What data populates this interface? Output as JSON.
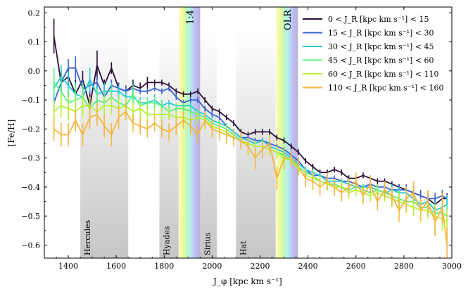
{
  "chart_data": {
    "type": "line",
    "xlabel": "J_φ [kpc km s⁻¹]",
    "ylabel": "[Fe/H]",
    "xlim": [
      1300,
      3000
    ],
    "ylim": [
      -0.645,
      0.22
    ],
    "xticks": [
      1400,
      1600,
      1800,
      2000,
      2200,
      2400,
      2600,
      2800,
      3000
    ],
    "yticks": [
      0.2,
      0.1,
      0.0,
      -0.1,
      -0.2,
      -0.3,
      -0.4,
      -0.5,
      -0.6
    ],
    "xtick_labels": [
      "1400",
      "1600",
      "1800",
      "2000",
      "2200",
      "2400",
      "2600",
      "2800",
      "3000"
    ],
    "ytick_labels": [
      "0.2",
      "0.1",
      "0.0",
      "−0.1",
      "−0.2",
      "−0.3",
      "−0.4",
      "−0.5",
      "−0.6"
    ],
    "grey_bands": [
      {
        "name": "Hercules",
        "x0": 1450,
        "x1": 1650
      },
      {
        "name": "Hyades",
        "x0": 1780,
        "x1": 1860
      },
      {
        "name": "Sirius",
        "x0": 1950,
        "x1": 2020
      },
      {
        "name": "Hat",
        "x0": 2100,
        "x1": 2265
      }
    ],
    "resonances": [
      {
        "label": "1:4",
        "x0": 1862,
        "x1": 1950
      },
      {
        "label": "OLR",
        "x0": 2268,
        "x1": 2358
      }
    ],
    "x": [
      1340,
      1370,
      1400,
      1430,
      1460,
      1490,
      1520,
      1550,
      1580,
      1610,
      1640,
      1670,
      1700,
      1730,
      1760,
      1790,
      1820,
      1850,
      1880,
      1910,
      1940,
      1970,
      2000,
      2030,
      2060,
      2090,
      2120,
      2150,
      2180,
      2210,
      2240,
      2270,
      2300,
      2330,
      2360,
      2390,
      2420,
      2450,
      2480,
      2510,
      2540,
      2570,
      2600,
      2630,
      2660,
      2690,
      2720,
      2750,
      2780,
      2810,
      2840,
      2870,
      2900,
      2930,
      2960,
      2980
    ],
    "series": [
      {
        "name": "0 < J_R [kpc km s⁻¹] < 15",
        "color": "#2b0f38",
        "values": [
          0.12,
          -0.04,
          -0.02,
          -0.08,
          -0.03,
          -0.12,
          0.02,
          -0.05,
          0.01,
          -0.06,
          -0.07,
          -0.05,
          -0.06,
          -0.04,
          -0.04,
          -0.04,
          -0.05,
          -0.07,
          -0.08,
          -0.08,
          -0.07,
          -0.1,
          -0.13,
          -0.14,
          -0.16,
          -0.18,
          -0.21,
          -0.22,
          -0.21,
          -0.21,
          -0.21,
          -0.23,
          -0.24,
          -0.26,
          -0.28,
          -0.31,
          -0.33,
          -0.35,
          -0.35,
          -0.34,
          -0.35,
          -0.37,
          -0.37,
          -0.36,
          -0.37,
          -0.38,
          -0.38,
          -0.39,
          -0.4,
          -0.41,
          -0.42,
          -0.43,
          -0.44,
          -0.46,
          -0.44,
          -0.44
        ],
        "errors": [
          0.06,
          0.04,
          0.03,
          0.05,
          0.03,
          0.04,
          0.05,
          0.02,
          0.02,
          0.02,
          0.02,
          0.02,
          0.02,
          0.02,
          0.01,
          0.01,
          0.01,
          0.01,
          0.01,
          0.01,
          0.01,
          0.01,
          0.01,
          0.01,
          0.01,
          0.01,
          0.01,
          0.01,
          0.01,
          0.01,
          0.01,
          0.01,
          0.01,
          0.01,
          0.01,
          0.01,
          0.01,
          0.01,
          0.01,
          0.01,
          0.01,
          0.01,
          0.01,
          0.01,
          0.01,
          0.01,
          0.01,
          0.01,
          0.01,
          0.01,
          0.01,
          0.01,
          0.01,
          0.02,
          0.02,
          0.02
        ]
      },
      {
        "name": "15 < J_R [kpc km s⁻¹] < 30",
        "color": "#3a62d6",
        "values": [
          -0.11,
          -0.04,
          0.01,
          0.01,
          -0.06,
          -0.05,
          -0.04,
          -0.09,
          -0.05,
          -0.06,
          -0.07,
          -0.06,
          -0.07,
          -0.07,
          -0.06,
          -0.07,
          -0.06,
          -0.09,
          -0.11,
          -0.1,
          -0.1,
          -0.13,
          -0.15,
          -0.16,
          -0.19,
          -0.21,
          -0.23,
          -0.23,
          -0.24,
          -0.24,
          -0.25,
          -0.26,
          -0.27,
          -0.29,
          -0.31,
          -0.34,
          -0.36,
          -0.36,
          -0.37,
          -0.37,
          -0.38,
          -0.38,
          -0.39,
          -0.4,
          -0.39,
          -0.4,
          -0.4,
          -0.41,
          -0.41,
          -0.41,
          -0.42,
          -0.43,
          -0.44,
          -0.44,
          -0.43,
          -0.44
        ],
        "errors": [
          0.03,
          0.04,
          0.03,
          0.04,
          0.03,
          0.03,
          0.02,
          0.02,
          0.02,
          0.02,
          0.02,
          0.02,
          0.01,
          0.01,
          0.01,
          0.01,
          0.01,
          0.01,
          0.01,
          0.01,
          0.01,
          0.01,
          0.01,
          0.01,
          0.01,
          0.01,
          0.01,
          0.01,
          0.01,
          0.01,
          0.01,
          0.01,
          0.01,
          0.01,
          0.01,
          0.01,
          0.01,
          0.01,
          0.01,
          0.01,
          0.01,
          0.01,
          0.01,
          0.01,
          0.01,
          0.01,
          0.01,
          0.02,
          0.02,
          0.02,
          0.02,
          0.02,
          0.02,
          0.02,
          0.02,
          0.02
        ]
      },
      {
        "name": "30 < J_R [kpc km s⁻¹] < 45",
        "color": "#22cbd8",
        "values": [
          -0.06,
          -0.02,
          -0.05,
          -0.08,
          -0.09,
          -0.03,
          -0.08,
          -0.07,
          -0.07,
          -0.07,
          -0.09,
          -0.09,
          -0.11,
          -0.11,
          -0.1,
          -0.12,
          -0.11,
          -0.12,
          -0.12,
          -0.12,
          -0.14,
          -0.15,
          -0.17,
          -0.18,
          -0.19,
          -0.21,
          -0.23,
          -0.24,
          -0.25,
          -0.24,
          -0.26,
          -0.27,
          -0.28,
          -0.3,
          -0.32,
          -0.34,
          -0.35,
          -0.36,
          -0.38,
          -0.38,
          -0.38,
          -0.39,
          -0.4,
          -0.4,
          -0.4,
          -0.41,
          -0.42,
          -0.41,
          -0.42,
          -0.42,
          -0.44,
          -0.46,
          -0.45,
          -0.48,
          -0.47,
          -0.46
        ],
        "errors": [
          0.04,
          0.04,
          0.05,
          0.04,
          0.04,
          0.04,
          0.03,
          0.03,
          0.03,
          0.02,
          0.02,
          0.02,
          0.02,
          0.02,
          0.02,
          0.02,
          0.01,
          0.01,
          0.01,
          0.01,
          0.01,
          0.01,
          0.01,
          0.01,
          0.01,
          0.01,
          0.01,
          0.01,
          0.01,
          0.01,
          0.01,
          0.01,
          0.01,
          0.01,
          0.01,
          0.01,
          0.01,
          0.01,
          0.01,
          0.01,
          0.01,
          0.01,
          0.01,
          0.01,
          0.01,
          0.01,
          0.02,
          0.02,
          0.02,
          0.02,
          0.02,
          0.02,
          0.02,
          0.03,
          0.03,
          0.03
        ]
      },
      {
        "name": "45 < J_R [kpc km s⁻¹] < 60",
        "color": "#5cf27a",
        "values": [
          -0.04,
          -0.07,
          -0.11,
          -0.1,
          -0.09,
          -0.13,
          -0.1,
          -0.11,
          -0.09,
          -0.11,
          -0.12,
          -0.08,
          -0.12,
          -0.11,
          -0.11,
          -0.12,
          -0.14,
          -0.13,
          -0.13,
          -0.14,
          -0.15,
          -0.16,
          -0.18,
          -0.19,
          -0.2,
          -0.22,
          -0.24,
          -0.25,
          -0.26,
          -0.26,
          -0.27,
          -0.28,
          -0.29,
          -0.31,
          -0.33,
          -0.35,
          -0.36,
          -0.38,
          -0.39,
          -0.39,
          -0.4,
          -0.41,
          -0.4,
          -0.41,
          -0.42,
          -0.41,
          -0.42,
          -0.43,
          -0.44,
          -0.45,
          -0.45,
          -0.47,
          -0.47,
          -0.49,
          -0.49,
          -0.5
        ],
        "errors": [
          0.05,
          0.05,
          0.05,
          0.05,
          0.05,
          0.04,
          0.04,
          0.04,
          0.03,
          0.03,
          0.03,
          0.03,
          0.02,
          0.02,
          0.02,
          0.02,
          0.02,
          0.02,
          0.02,
          0.02,
          0.02,
          0.02,
          0.02,
          0.02,
          0.02,
          0.02,
          0.02,
          0.02,
          0.02,
          0.02,
          0.02,
          0.02,
          0.02,
          0.02,
          0.02,
          0.02,
          0.02,
          0.02,
          0.02,
          0.02,
          0.02,
          0.02,
          0.02,
          0.02,
          0.02,
          0.02,
          0.02,
          0.02,
          0.03,
          0.03,
          0.03,
          0.03,
          0.03,
          0.03,
          0.04,
          0.04
        ]
      },
      {
        "name": "60 < J_R [kpc km s⁻¹] < 110",
        "color": "#b6f233",
        "values": [
          -0.14,
          -0.12,
          -0.13,
          -0.14,
          -0.12,
          -0.12,
          -0.14,
          -0.12,
          -0.12,
          -0.13,
          -0.12,
          -0.14,
          -0.13,
          -0.15,
          -0.15,
          -0.15,
          -0.15,
          -0.16,
          -0.16,
          -0.17,
          -0.16,
          -0.17,
          -0.19,
          -0.2,
          -0.21,
          -0.23,
          -0.24,
          -0.25,
          -0.26,
          -0.26,
          -0.27,
          -0.28,
          -0.3,
          -0.31,
          -0.34,
          -0.36,
          -0.37,
          -0.38,
          -0.39,
          -0.4,
          -0.4,
          -0.42,
          -0.41,
          -0.42,
          -0.43,
          -0.42,
          -0.43,
          -0.44,
          -0.45,
          -0.46,
          -0.47,
          -0.48,
          -0.48,
          -0.5,
          -0.51,
          -0.52
        ],
        "errors": [
          0.04,
          0.04,
          0.04,
          0.04,
          0.04,
          0.03,
          0.03,
          0.03,
          0.03,
          0.03,
          0.03,
          0.03,
          0.03,
          0.03,
          0.02,
          0.02,
          0.02,
          0.02,
          0.02,
          0.02,
          0.02,
          0.02,
          0.02,
          0.02,
          0.02,
          0.02,
          0.02,
          0.02,
          0.02,
          0.02,
          0.02,
          0.02,
          0.02,
          0.02,
          0.02,
          0.02,
          0.02,
          0.02,
          0.02,
          0.02,
          0.02,
          0.02,
          0.02,
          0.02,
          0.02,
          0.02,
          0.02,
          0.03,
          0.03,
          0.03,
          0.03,
          0.03,
          0.03,
          0.04,
          0.04,
          0.04
        ]
      },
      {
        "name": "110 < J_R [kpc km s⁻¹] < 160",
        "color": "#f5b63c",
        "values": [
          -0.2,
          -0.22,
          -0.22,
          -0.17,
          -0.22,
          -0.16,
          -0.15,
          -0.19,
          -0.22,
          -0.16,
          -0.14,
          -0.18,
          -0.19,
          -0.2,
          -0.18,
          -0.2,
          -0.21,
          -0.19,
          -0.17,
          -0.19,
          -0.22,
          -0.17,
          -0.2,
          -0.21,
          -0.22,
          -0.23,
          -0.24,
          -0.26,
          -0.3,
          -0.27,
          -0.25,
          -0.37,
          -0.3,
          -0.3,
          -0.33,
          -0.37,
          -0.38,
          -0.4,
          -0.38,
          -0.4,
          -0.42,
          -0.4,
          -0.38,
          -0.43,
          -0.39,
          -0.45,
          -0.41,
          -0.43,
          -0.48,
          -0.44,
          -0.42,
          -0.48,
          -0.45,
          -0.52,
          -0.47,
          -0.6
        ],
        "errors": [
          0.04,
          0.04,
          0.04,
          0.04,
          0.04,
          0.04,
          0.04,
          0.04,
          0.04,
          0.04,
          0.03,
          0.03,
          0.03,
          0.03,
          0.03,
          0.03,
          0.03,
          0.03,
          0.03,
          0.03,
          0.03,
          0.03,
          0.03,
          0.03,
          0.03,
          0.03,
          0.03,
          0.03,
          0.04,
          0.03,
          0.03,
          0.04,
          0.04,
          0.03,
          0.03,
          0.03,
          0.03,
          0.03,
          0.03,
          0.03,
          0.03,
          0.03,
          0.03,
          0.03,
          0.03,
          0.03,
          0.03,
          0.03,
          0.04,
          0.04,
          0.04,
          0.04,
          0.04,
          0.05,
          0.05,
          0.06
        ]
      }
    ]
  }
}
